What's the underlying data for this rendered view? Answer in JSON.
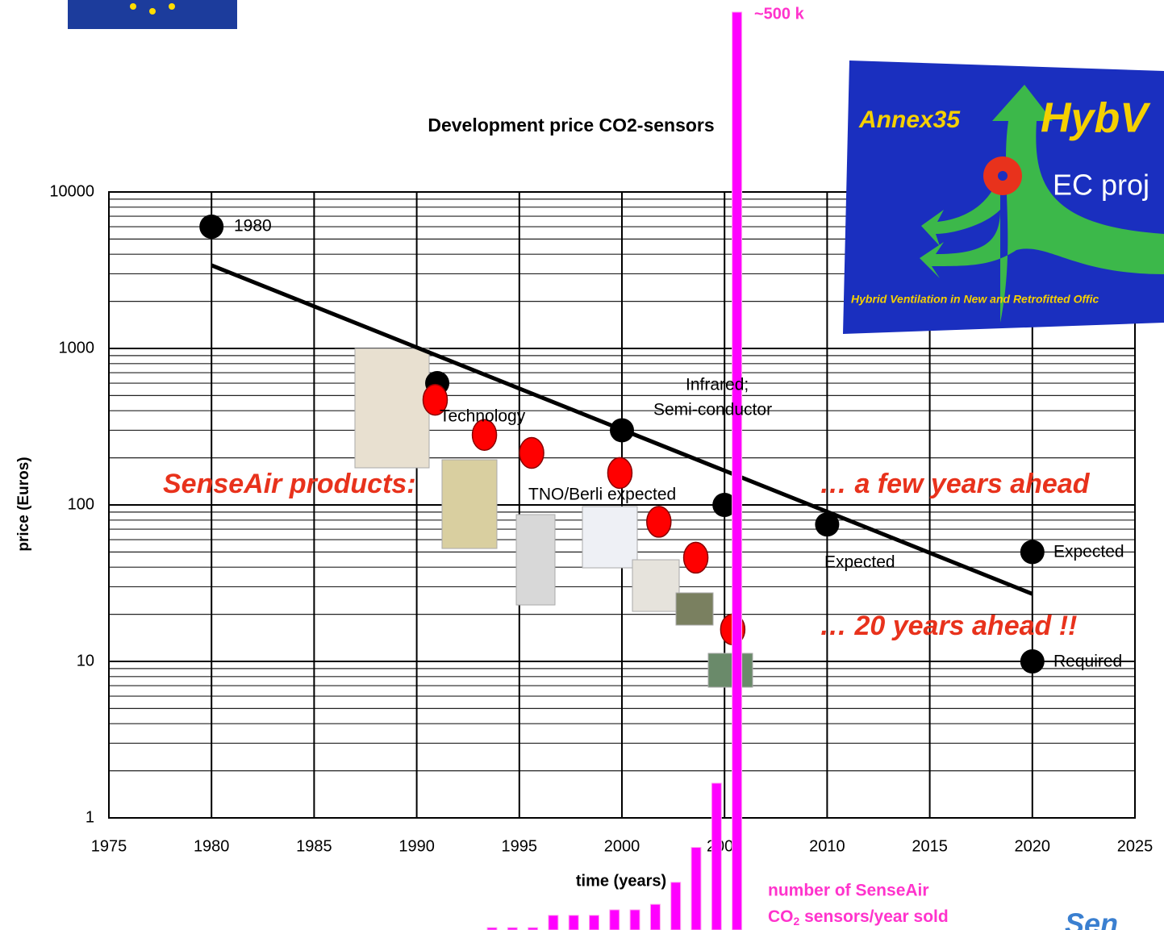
{
  "chart_data": [
    {
      "type": "scatter",
      "title": "Development price CO2-sensors",
      "x_label": "time (years)",
      "y_label": "price (Euros)",
      "xlim": [
        1975,
        2025
      ],
      "xticks": [
        1975,
        1980,
        1985,
        1990,
        1995,
        2000,
        2005,
        2010,
        2015,
        2020,
        2025
      ],
      "ylim": [
        1,
        10000
      ],
      "yticks": [
        1,
        10,
        100,
        1000,
        10000
      ],
      "log_y": true,
      "grid": true,
      "series": [
        {
          "color": "#000000",
          "x": [
            1980,
            1991,
            2000,
            2005,
            2010,
            2020,
            2020
          ],
          "values": [
            6000,
            600,
            300,
            100,
            75,
            50,
            10
          ]
        },
        {
          "color": "#ff0000",
          "x": [
            1990.9,
            1993.3,
            1995.6,
            1999.9,
            2001.8,
            2003.6,
            2005.4
          ],
          "values": [
            470,
            280,
            215,
            160,
            78,
            46,
            16
          ]
        }
      ],
      "trend": {
        "color": "#000000",
        "x": [
          1980,
          2020
        ],
        "values": [
          3400,
          27
        ]
      },
      "annotations": [
        "1980",
        "Technology",
        "Infrared;",
        "Semi-conductor",
        "TNO/Berli expected",
        "Expected",
        "Expected",
        "Required",
        "SenseAir products:",
        "… a few years ahead",
        "… 20 years ahead !!"
      ]
    },
    {
      "type": "bar",
      "color": "#ff00ff",
      "ylim": [
        0,
        500
      ],
      "categories": [
        null,
        null,
        null,
        null,
        null,
        null,
        null,
        null,
        null,
        null,
        null,
        null,
        null
      ],
      "values": [
        1.3,
        1.3,
        1.3,
        8,
        8,
        8,
        11,
        11,
        14,
        26,
        45,
        80,
        500
      ],
      "peak_label": "~500 k",
      "caption": [
        "number of SenseAir",
        "CO",
        "2",
        " sensors/year sold"
      ]
    }
  ],
  "logo": {
    "name": "Annex35",
    "title": "HybV",
    "subtitle": "EC proj",
    "tagline": "Hybrid Ventilation in New and Retrofitted Offic",
    "brand": "Sen"
  }
}
